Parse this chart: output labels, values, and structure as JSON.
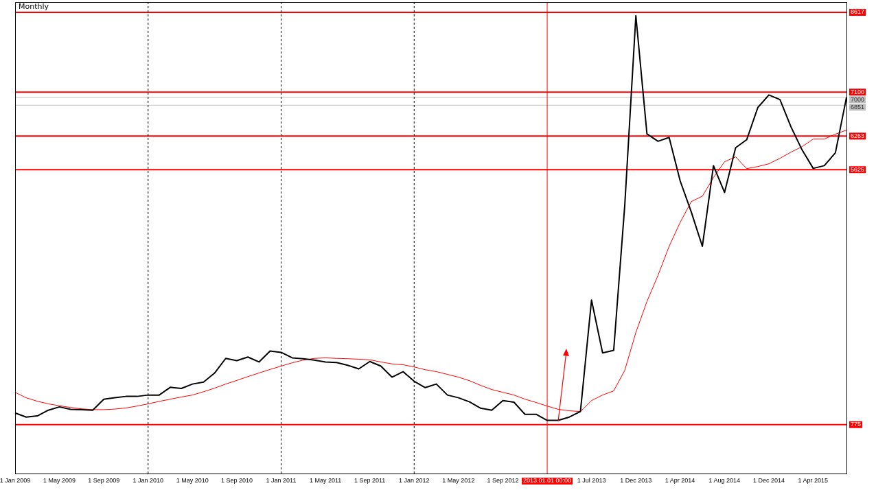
{
  "chart_data": {
    "type": "line",
    "title": "Monthly",
    "categories": [
      "1 Jan 2009",
      null,
      null,
      null,
      "1 May 2009",
      null,
      null,
      null,
      "1 Sep 2009",
      null,
      null,
      null,
      "1 Jan 2010",
      null,
      null,
      null,
      "1 May 2010",
      null,
      null,
      null,
      "1 Sep 2010",
      null,
      null,
      null,
      "1 Jan 2011",
      null,
      null,
      null,
      "1 May 2011",
      null,
      null,
      null,
      "1 Sep 2011",
      null,
      null,
      null,
      "1 Jan 2012",
      null,
      null,
      null,
      "1 May 2012",
      null,
      null,
      null,
      "1 Sep 2012",
      null,
      null,
      null,
      "2013.01.01 00:00",
      null,
      null,
      null,
      "1 Jul 2013",
      null,
      null,
      null,
      "1 Dec 2013",
      null,
      null,
      null,
      "1 Apr 2014",
      null,
      null,
      null,
      "1 Aug 2014",
      null,
      null,
      null,
      "1 Dec 2014",
      null,
      null,
      null,
      "1 Apr 2015",
      null,
      null,
      null
    ],
    "series": [
      {
        "color": "#000000",
        "values": [
          997,
          919,
          940,
          1050,
          1113,
          1066,
          1060,
          1050,
          1259,
          1286,
          1312,
          1312,
          1338,
          1338,
          1485,
          1464,
          1547,
          1584,
          1757,
          2035,
          1993,
          2061,
          1967,
          2176,
          2150,
          2045,
          2029,
          2003,
          1967,
          1956,
          1904,
          1836,
          1976,
          1888,
          1678,
          1783,
          1600,
          1479,
          1547,
          1338,
          1286,
          1207,
          1087,
          1050,
          1233,
          1202,
          971,
          971,
          856,
          856,
          919,
          1024,
          3145,
          2139,
          2187,
          4950,
          8552,
          6304,
          6165,
          6238,
          5409,
          4820,
          4166,
          5701,
          5191,
          6042,
          6195,
          6806,
          7046,
          6958,
          6435,
          5999,
          5649,
          5701,
          5946,
          7000
        ]
      },
      {
        "color": "#ff0000",
        "values": [
          1390,
          1286,
          1220,
          1170,
          1134,
          1102,
          1076,
          1060,
          1060,
          1071,
          1092,
          1128,
          1170,
          1217,
          1259,
          1301,
          1338,
          1401,
          1469,
          1547,
          1616,
          1689,
          1757,
          1825,
          1888,
          1951,
          2003,
          2035,
          2045,
          2035,
          2029,
          2019,
          2008,
          1967,
          1930,
          1914,
          1872,
          1820,
          1783,
          1731,
          1678,
          1610,
          1521,
          1443,
          1390,
          1338,
          1259,
          1196,
          1128,
          1066,
          1039,
          1024,
          1233,
          1338,
          1417,
          1809,
          2529,
          3118,
          3616,
          4166,
          4624,
          5017,
          5121,
          5475,
          5776,
          5868,
          5645,
          5684,
          5737,
          5841,
          5959,
          6064,
          6208,
          6208,
          6300,
          6378
        ]
      }
    ],
    "ylim": [
      -155,
      8813
    ],
    "yticks": [
      775,
      5625,
      6263,
      6851,
      7000,
      7100,
      8617
    ],
    "ref_lines": [
      {
        "axis": "y",
        "value": 8617,
        "color": "#ff0000"
      },
      {
        "axis": "y",
        "value": 7100,
        "color": "#ff0000"
      },
      {
        "axis": "y",
        "value": 7000,
        "color": "#c0c0c0"
      },
      {
        "axis": "y",
        "value": 6851,
        "color": "#c0c0c0"
      },
      {
        "axis": "y",
        "value": 6263,
        "color": "#ff0000"
      },
      {
        "axis": "y",
        "value": 5625,
        "color": "#ff0000"
      },
      {
        "axis": "y",
        "value": 775,
        "color": "#ff0000"
      },
      {
        "axis": "x",
        "value": "2013.01.01 00:00",
        "color": "#ff0000"
      },
      {
        "axis": "x",
        "value": "1 Jan 2010",
        "color": "#000000",
        "line_style": "dashed"
      },
      {
        "axis": "x",
        "value": "1 Jan 2011",
        "color": "#000000",
        "line_style": "dashed"
      },
      {
        "axis": "x",
        "value": "1 Jan 2012",
        "color": "#000000",
        "line_style": "dashed"
      }
    ],
    "legend": false,
    "grid": false,
    "marker": "none",
    "line_style": "solid"
  }
}
